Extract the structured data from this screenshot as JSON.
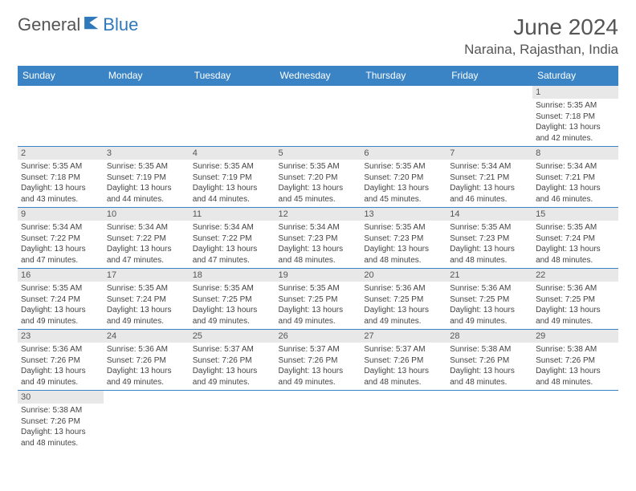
{
  "logo": {
    "part1": "General",
    "part2": "Blue"
  },
  "title": "June 2024",
  "location": "Naraina, Rajasthan, India",
  "colors": {
    "header_bg": "#3a84c5",
    "header_text": "#ffffff",
    "daynum_bg": "#e8e8e8",
    "border": "#3a84c5",
    "brand_blue": "#2f78bb",
    "text": "#555555"
  },
  "dayHeaders": [
    "Sunday",
    "Monday",
    "Tuesday",
    "Wednesday",
    "Thursday",
    "Friday",
    "Saturday"
  ],
  "weeks": [
    [
      null,
      null,
      null,
      null,
      null,
      null,
      {
        "n": "1",
        "sr": "5:35 AM",
        "ss": "7:18 PM",
        "dl": "13 hours and 42 minutes."
      }
    ],
    [
      {
        "n": "2",
        "sr": "5:35 AM",
        "ss": "7:18 PM",
        "dl": "13 hours and 43 minutes."
      },
      {
        "n": "3",
        "sr": "5:35 AM",
        "ss": "7:19 PM",
        "dl": "13 hours and 44 minutes."
      },
      {
        "n": "4",
        "sr": "5:35 AM",
        "ss": "7:19 PM",
        "dl": "13 hours and 44 minutes."
      },
      {
        "n": "5",
        "sr": "5:35 AM",
        "ss": "7:20 PM",
        "dl": "13 hours and 45 minutes."
      },
      {
        "n": "6",
        "sr": "5:35 AM",
        "ss": "7:20 PM",
        "dl": "13 hours and 45 minutes."
      },
      {
        "n": "7",
        "sr": "5:34 AM",
        "ss": "7:21 PM",
        "dl": "13 hours and 46 minutes."
      },
      {
        "n": "8",
        "sr": "5:34 AM",
        "ss": "7:21 PM",
        "dl": "13 hours and 46 minutes."
      }
    ],
    [
      {
        "n": "9",
        "sr": "5:34 AM",
        "ss": "7:22 PM",
        "dl": "13 hours and 47 minutes."
      },
      {
        "n": "10",
        "sr": "5:34 AM",
        "ss": "7:22 PM",
        "dl": "13 hours and 47 minutes."
      },
      {
        "n": "11",
        "sr": "5:34 AM",
        "ss": "7:22 PM",
        "dl": "13 hours and 47 minutes."
      },
      {
        "n": "12",
        "sr": "5:34 AM",
        "ss": "7:23 PM",
        "dl": "13 hours and 48 minutes."
      },
      {
        "n": "13",
        "sr": "5:35 AM",
        "ss": "7:23 PM",
        "dl": "13 hours and 48 minutes."
      },
      {
        "n": "14",
        "sr": "5:35 AM",
        "ss": "7:23 PM",
        "dl": "13 hours and 48 minutes."
      },
      {
        "n": "15",
        "sr": "5:35 AM",
        "ss": "7:24 PM",
        "dl": "13 hours and 48 minutes."
      }
    ],
    [
      {
        "n": "16",
        "sr": "5:35 AM",
        "ss": "7:24 PM",
        "dl": "13 hours and 49 minutes."
      },
      {
        "n": "17",
        "sr": "5:35 AM",
        "ss": "7:24 PM",
        "dl": "13 hours and 49 minutes."
      },
      {
        "n": "18",
        "sr": "5:35 AM",
        "ss": "7:25 PM",
        "dl": "13 hours and 49 minutes."
      },
      {
        "n": "19",
        "sr": "5:35 AM",
        "ss": "7:25 PM",
        "dl": "13 hours and 49 minutes."
      },
      {
        "n": "20",
        "sr": "5:36 AM",
        "ss": "7:25 PM",
        "dl": "13 hours and 49 minutes."
      },
      {
        "n": "21",
        "sr": "5:36 AM",
        "ss": "7:25 PM",
        "dl": "13 hours and 49 minutes."
      },
      {
        "n": "22",
        "sr": "5:36 AM",
        "ss": "7:25 PM",
        "dl": "13 hours and 49 minutes."
      }
    ],
    [
      {
        "n": "23",
        "sr": "5:36 AM",
        "ss": "7:26 PM",
        "dl": "13 hours and 49 minutes."
      },
      {
        "n": "24",
        "sr": "5:36 AM",
        "ss": "7:26 PM",
        "dl": "13 hours and 49 minutes."
      },
      {
        "n": "25",
        "sr": "5:37 AM",
        "ss": "7:26 PM",
        "dl": "13 hours and 49 minutes."
      },
      {
        "n": "26",
        "sr": "5:37 AM",
        "ss": "7:26 PM",
        "dl": "13 hours and 49 minutes."
      },
      {
        "n": "27",
        "sr": "5:37 AM",
        "ss": "7:26 PM",
        "dl": "13 hours and 48 minutes."
      },
      {
        "n": "28",
        "sr": "5:38 AM",
        "ss": "7:26 PM",
        "dl": "13 hours and 48 minutes."
      },
      {
        "n": "29",
        "sr": "5:38 AM",
        "ss": "7:26 PM",
        "dl": "13 hours and 48 minutes."
      }
    ],
    [
      {
        "n": "30",
        "sr": "5:38 AM",
        "ss": "7:26 PM",
        "dl": "13 hours and 48 minutes."
      },
      null,
      null,
      null,
      null,
      null,
      null
    ]
  ],
  "labels": {
    "sunrise": "Sunrise:",
    "sunset": "Sunset:",
    "daylight": "Daylight:"
  }
}
